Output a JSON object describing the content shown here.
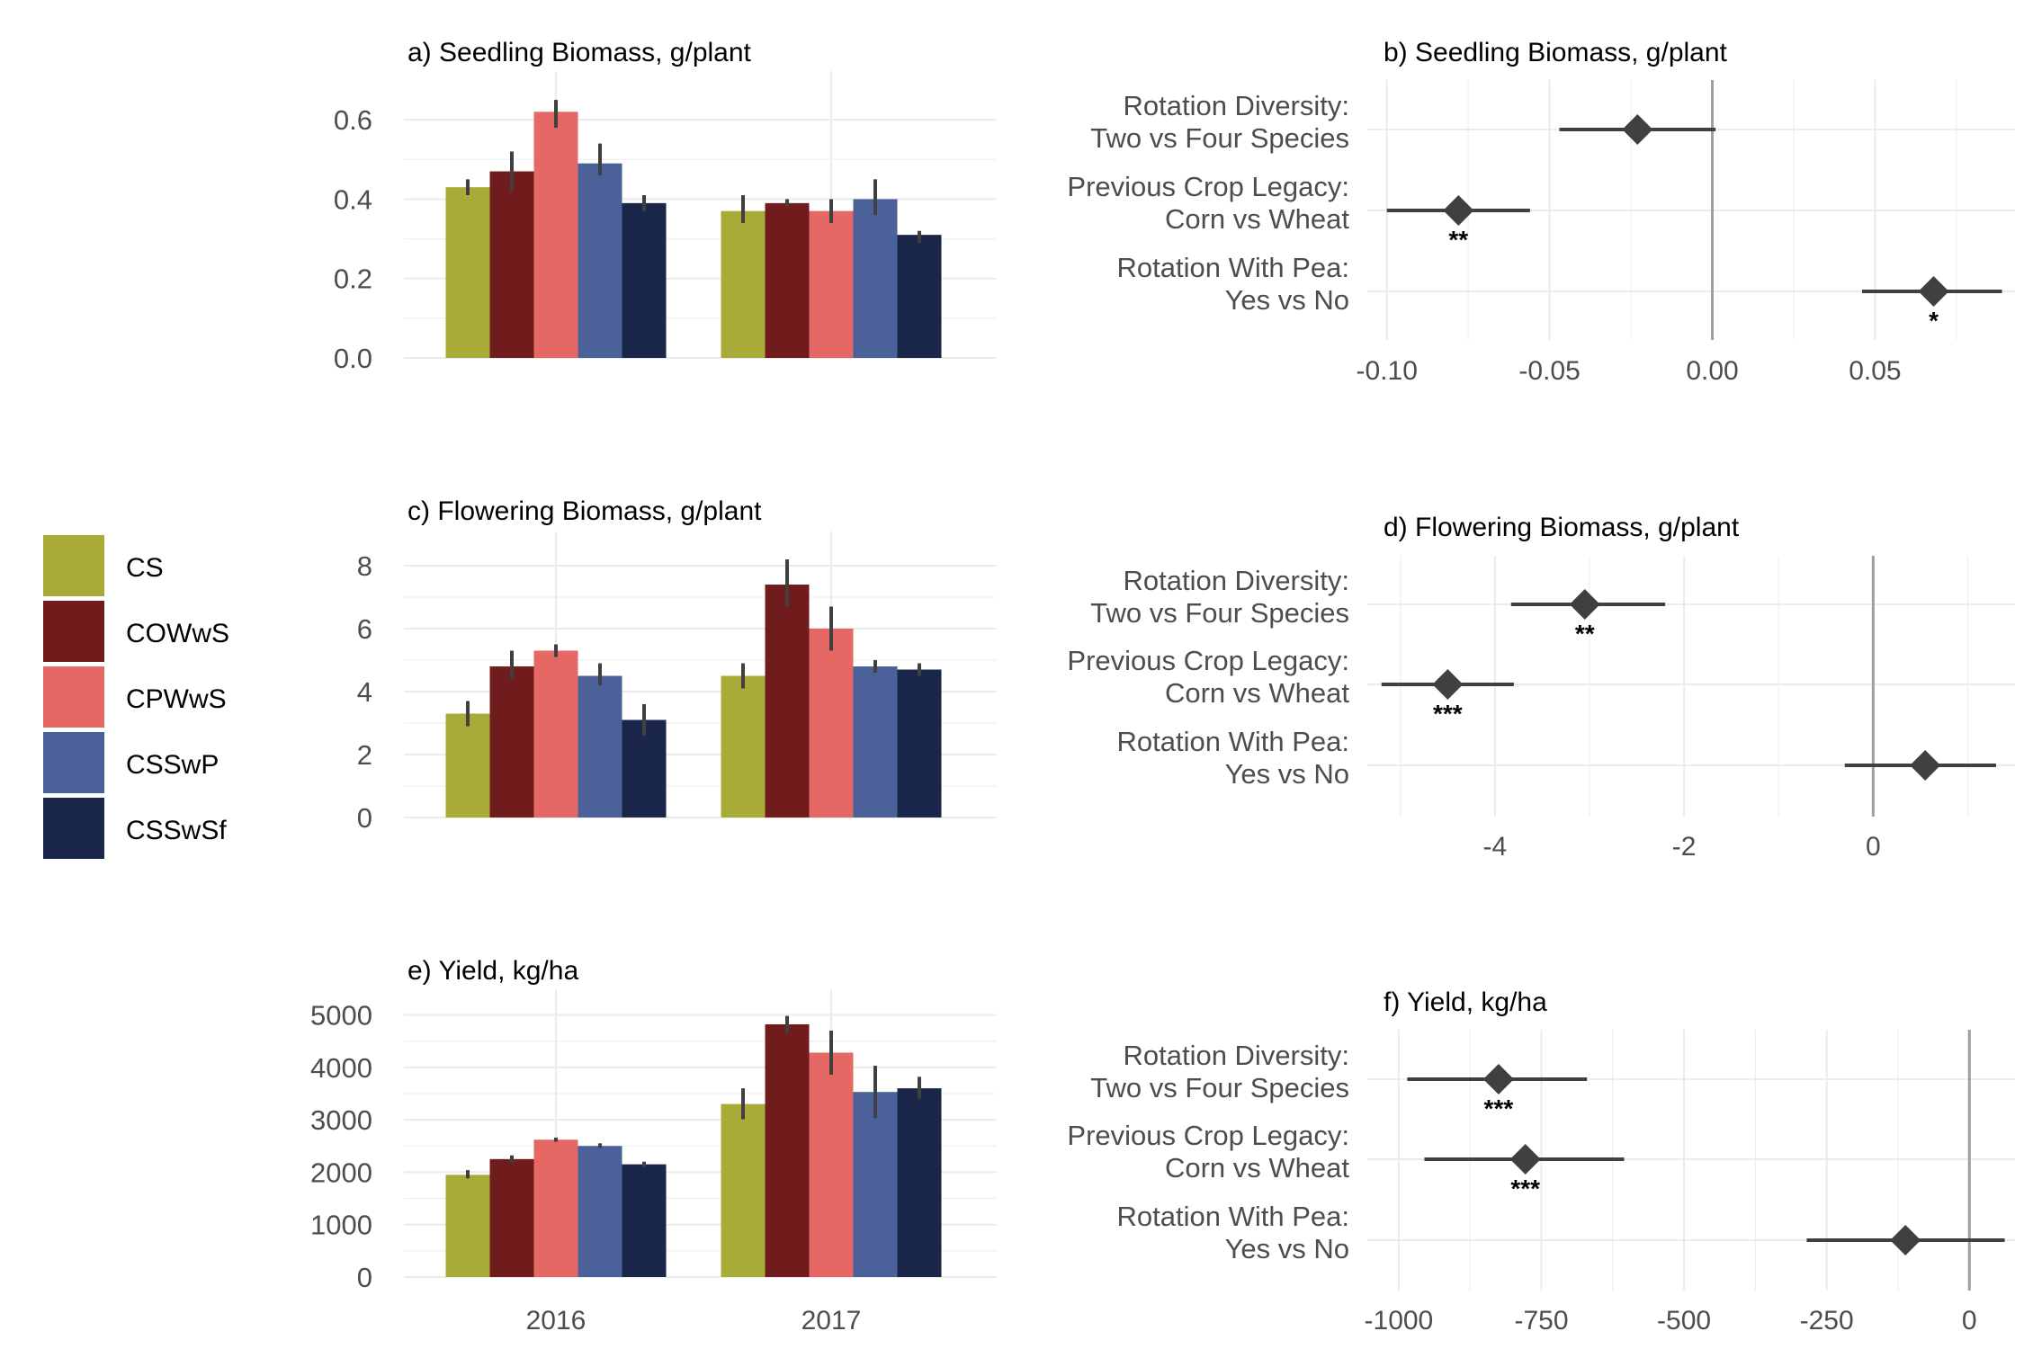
{
  "legend": {
    "items": [
      {
        "label": "CS",
        "color": "#a8ab38"
      },
      {
        "label": "COWwS",
        "color": "#701c1c"
      },
      {
        "label": "CPWwS",
        "color": "#e66865"
      },
      {
        "label": "CSSwP",
        "color": "#4a6199"
      },
      {
        "label": "CSSwSf",
        "color": "#1b264b"
      }
    ]
  },
  "colors": {
    "forest_mark": "#404040",
    "zero_line": "#9e9e9e",
    "grid": "#ebebeb"
  },
  "chart_data": [
    {
      "panel": "a",
      "type": "bar",
      "title": "a) Seedling Biomass, g/plant",
      "categories": [
        "2016",
        "2017"
      ],
      "show_x_labels": false,
      "ylim": [
        0,
        0.7
      ],
      "yticks": [
        0,
        0.2,
        0.4,
        0.6
      ],
      "ytick_labels": [
        "0.0",
        "0.2",
        "0.4",
        "0.6"
      ],
      "series": [
        {
          "name": "CS",
          "values": [
            0.43,
            0.37
          ],
          "err": [
            [
              0.41,
              0.45
            ],
            [
              0.34,
              0.41
            ]
          ]
        },
        {
          "name": "COWwS",
          "values": [
            0.47,
            0.39
          ],
          "err": [
            [
              0.42,
              0.52
            ],
            [
              0.38,
              0.4
            ]
          ]
        },
        {
          "name": "CPWwS",
          "values": [
            0.62,
            0.37
          ],
          "err": [
            [
              0.58,
              0.65
            ],
            [
              0.34,
              0.4
            ]
          ]
        },
        {
          "name": "CSSwP",
          "values": [
            0.49,
            0.4
          ],
          "err": [
            [
              0.46,
              0.54
            ],
            [
              0.36,
              0.45
            ]
          ]
        },
        {
          "name": "CSSwSf",
          "values": [
            0.39,
            0.31
          ],
          "err": [
            [
              0.37,
              0.41
            ],
            [
              0.29,
              0.32
            ]
          ]
        }
      ]
    },
    {
      "panel": "c",
      "type": "bar",
      "title": "c) Flowering Biomass, g/plant",
      "categories": [
        "2016",
        "2017"
      ],
      "show_x_labels": false,
      "ylim": [
        0,
        8.8
      ],
      "yticks": [
        0,
        2,
        4,
        6,
        8
      ],
      "ytick_labels": [
        "0",
        "2",
        "4",
        "6",
        "8"
      ],
      "series": [
        {
          "name": "CS",
          "values": [
            3.3,
            4.5
          ],
          "err": [
            [
              2.9,
              3.7
            ],
            [
              4.1,
              4.9
            ]
          ]
        },
        {
          "name": "COWwS",
          "values": [
            4.8,
            7.4
          ],
          "err": [
            [
              4.4,
              5.3
            ],
            [
              6.7,
              8.2
            ]
          ]
        },
        {
          "name": "CPWwS",
          "values": [
            5.3,
            6.0
          ],
          "err": [
            [
              5.1,
              5.5
            ],
            [
              5.3,
              6.7
            ]
          ]
        },
        {
          "name": "CSSwP",
          "values": [
            4.5,
            4.8
          ],
          "err": [
            [
              4.2,
              4.9
            ],
            [
              4.6,
              5.0
            ]
          ]
        },
        {
          "name": "CSSwSf",
          "values": [
            3.1,
            4.7
          ],
          "err": [
            [
              2.6,
              3.6
            ],
            [
              4.5,
              4.9
            ]
          ]
        }
      ]
    },
    {
      "panel": "e",
      "type": "bar",
      "title": "e) Yield, kg/ha",
      "categories": [
        "2016",
        "2017"
      ],
      "show_x_labels": true,
      "ylim": [
        0,
        5300
      ],
      "yticks": [
        0,
        1000,
        2000,
        3000,
        4000,
        5000
      ],
      "ytick_labels": [
        "0",
        "1000",
        "2000",
        "3000",
        "4000",
        "5000"
      ],
      "series": [
        {
          "name": "CS",
          "values": [
            1950,
            3300
          ],
          "err": [
            [
              1880,
              2040
            ],
            [
              3010,
              3600
            ]
          ]
        },
        {
          "name": "COWwS",
          "values": [
            2250,
            4820
          ],
          "err": [
            [
              2180,
              2320
            ],
            [
              4660,
              4980
            ]
          ]
        },
        {
          "name": "CPWwS",
          "values": [
            2620,
            4280
          ],
          "err": [
            [
              2580,
              2660
            ],
            [
              3860,
              4700
            ]
          ]
        },
        {
          "name": "CSSwP",
          "values": [
            2500,
            3530
          ],
          "err": [
            [
              2460,
              2550
            ],
            [
              3030,
              4030
            ]
          ]
        },
        {
          "name": "CSSwSf",
          "values": [
            2150,
            3600
          ],
          "err": [
            [
              2100,
              2200
            ],
            [
              3400,
              3820
            ]
          ]
        }
      ]
    },
    {
      "panel": "b",
      "type": "forest",
      "title": "b) Seedling Biomass, g/plant",
      "xlim": [
        -0.106,
        0.093
      ],
      "xticks": [
        -0.1,
        -0.05,
        0,
        0.05
      ],
      "xtick_labels": [
        "-0.10",
        "-0.05",
        "0.00",
        "0.05"
      ],
      "rows": [
        {
          "label": [
            "Rotation Diversity:",
            "Two vs Four Species"
          ],
          "estimate": -0.023,
          "low": -0.047,
          "high": 0.001,
          "sig": ""
        },
        {
          "label": [
            "Previous Crop Legacy:",
            "Corn vs Wheat"
          ],
          "estimate": -0.078,
          "low": -0.1,
          "high": -0.056,
          "sig": "**"
        },
        {
          "label": [
            "Rotation With Pea:",
            "Yes vs No"
          ],
          "estimate": 0.068,
          "low": 0.046,
          "high": 0.089,
          "sig": "*"
        }
      ]
    },
    {
      "panel": "d",
      "type": "forest",
      "title": "d) Flowering Biomass, g/plant",
      "xlim": [
        -5.35,
        1.5
      ],
      "xticks": [
        -4,
        -2,
        0
      ],
      "xtick_labels": [
        "-4",
        "-2",
        "0"
      ],
      "rows": [
        {
          "label": [
            "Rotation Diversity:",
            "Two vs Four Species"
          ],
          "estimate": -3.05,
          "low": -3.83,
          "high": -2.2,
          "sig": "**"
        },
        {
          "label": [
            "Previous Crop Legacy:",
            "Corn vs Wheat"
          ],
          "estimate": -4.5,
          "low": -5.2,
          "high": -3.8,
          "sig": "***"
        },
        {
          "label": [
            "Rotation With Pea:",
            "Yes vs No"
          ],
          "estimate": 0.55,
          "low": -0.3,
          "high": 1.3,
          "sig": ""
        }
      ]
    },
    {
      "panel": "f",
      "type": "forest",
      "title": "f) Yield, kg/ha",
      "xlim": [
        -1055,
        80
      ],
      "xticks": [
        -1000,
        -750,
        -500,
        -250,
        0
      ],
      "xtick_labels": [
        "-1000",
        "-750",
        "-500",
        "-250",
        "0"
      ],
      "rows": [
        {
          "label": [
            "Rotation Diversity:",
            "Two vs Four Species"
          ],
          "estimate": -825,
          "low": -985,
          "high": -670,
          "sig": "***"
        },
        {
          "label": [
            "Previous Crop Legacy:",
            "Corn vs Wheat"
          ],
          "estimate": -778,
          "low": -955,
          "high": -605,
          "sig": "***"
        },
        {
          "label": [
            "Rotation With Pea:",
            "Yes vs No"
          ],
          "estimate": -112,
          "low": -285,
          "high": 62,
          "sig": ""
        }
      ]
    }
  ]
}
